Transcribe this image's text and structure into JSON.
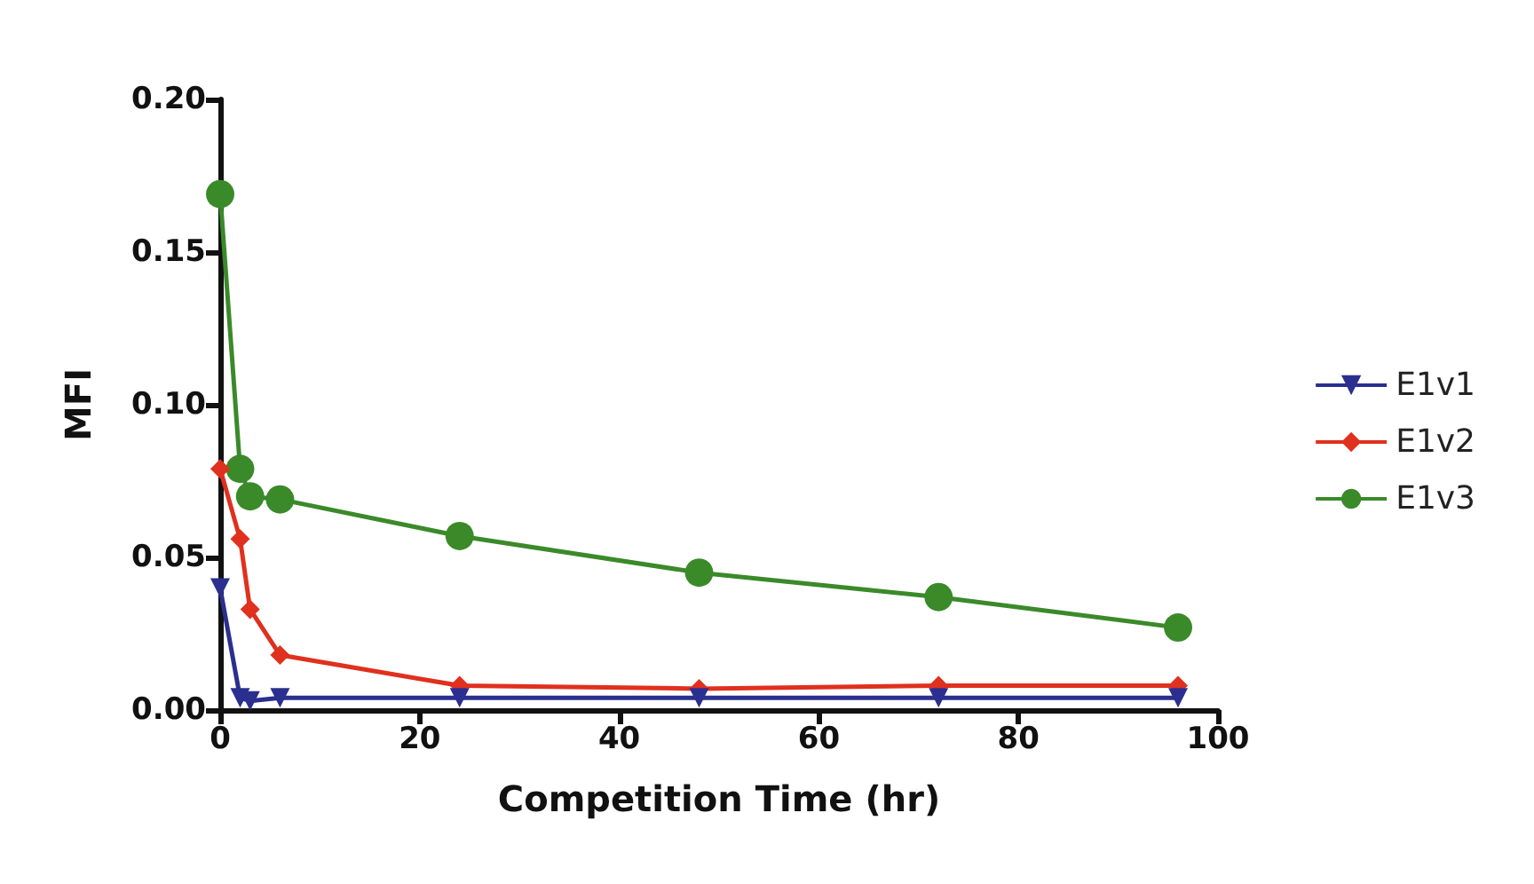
{
  "chart_data": {
    "type": "line",
    "xlabel": "Competition Time (hr)",
    "ylabel": "MFI",
    "x": [
      0,
      2,
      3,
      6,
      24,
      48,
      72,
      96
    ],
    "series": [
      {
        "name": "E1v1",
        "color": "#2b2f8f",
        "marker": "triangle",
        "values": [
          0.04,
          0.004,
          0.003,
          0.004,
          0.004,
          0.004,
          0.004,
          0.004
        ]
      },
      {
        "name": "E1v2",
        "color": "#e0301e",
        "marker": "diamond",
        "values": [
          0.079,
          0.056,
          0.033,
          0.018,
          0.008,
          0.007,
          0.008,
          0.008
        ]
      },
      {
        "name": "E1v3",
        "color": "#3a8a2a",
        "marker": "circle",
        "values": [
          0.169,
          0.079,
          0.07,
          0.069,
          0.057,
          0.045,
          0.037,
          0.027
        ]
      }
    ],
    "xlim": [
      0,
      100
    ],
    "xticks": [
      0,
      20,
      40,
      60,
      80,
      100
    ],
    "ylim": [
      0,
      0.2
    ],
    "yticks": [
      {
        "value": 0,
        "label": "0.00"
      },
      {
        "value": 0.05,
        "label": "0.05"
      },
      {
        "value": 0.1,
        "label": "0.10"
      },
      {
        "value": 0.15,
        "label": "0.15"
      },
      {
        "value": 0.2,
        "label": "0.20"
      }
    ],
    "grid": false,
    "legend": "right"
  }
}
